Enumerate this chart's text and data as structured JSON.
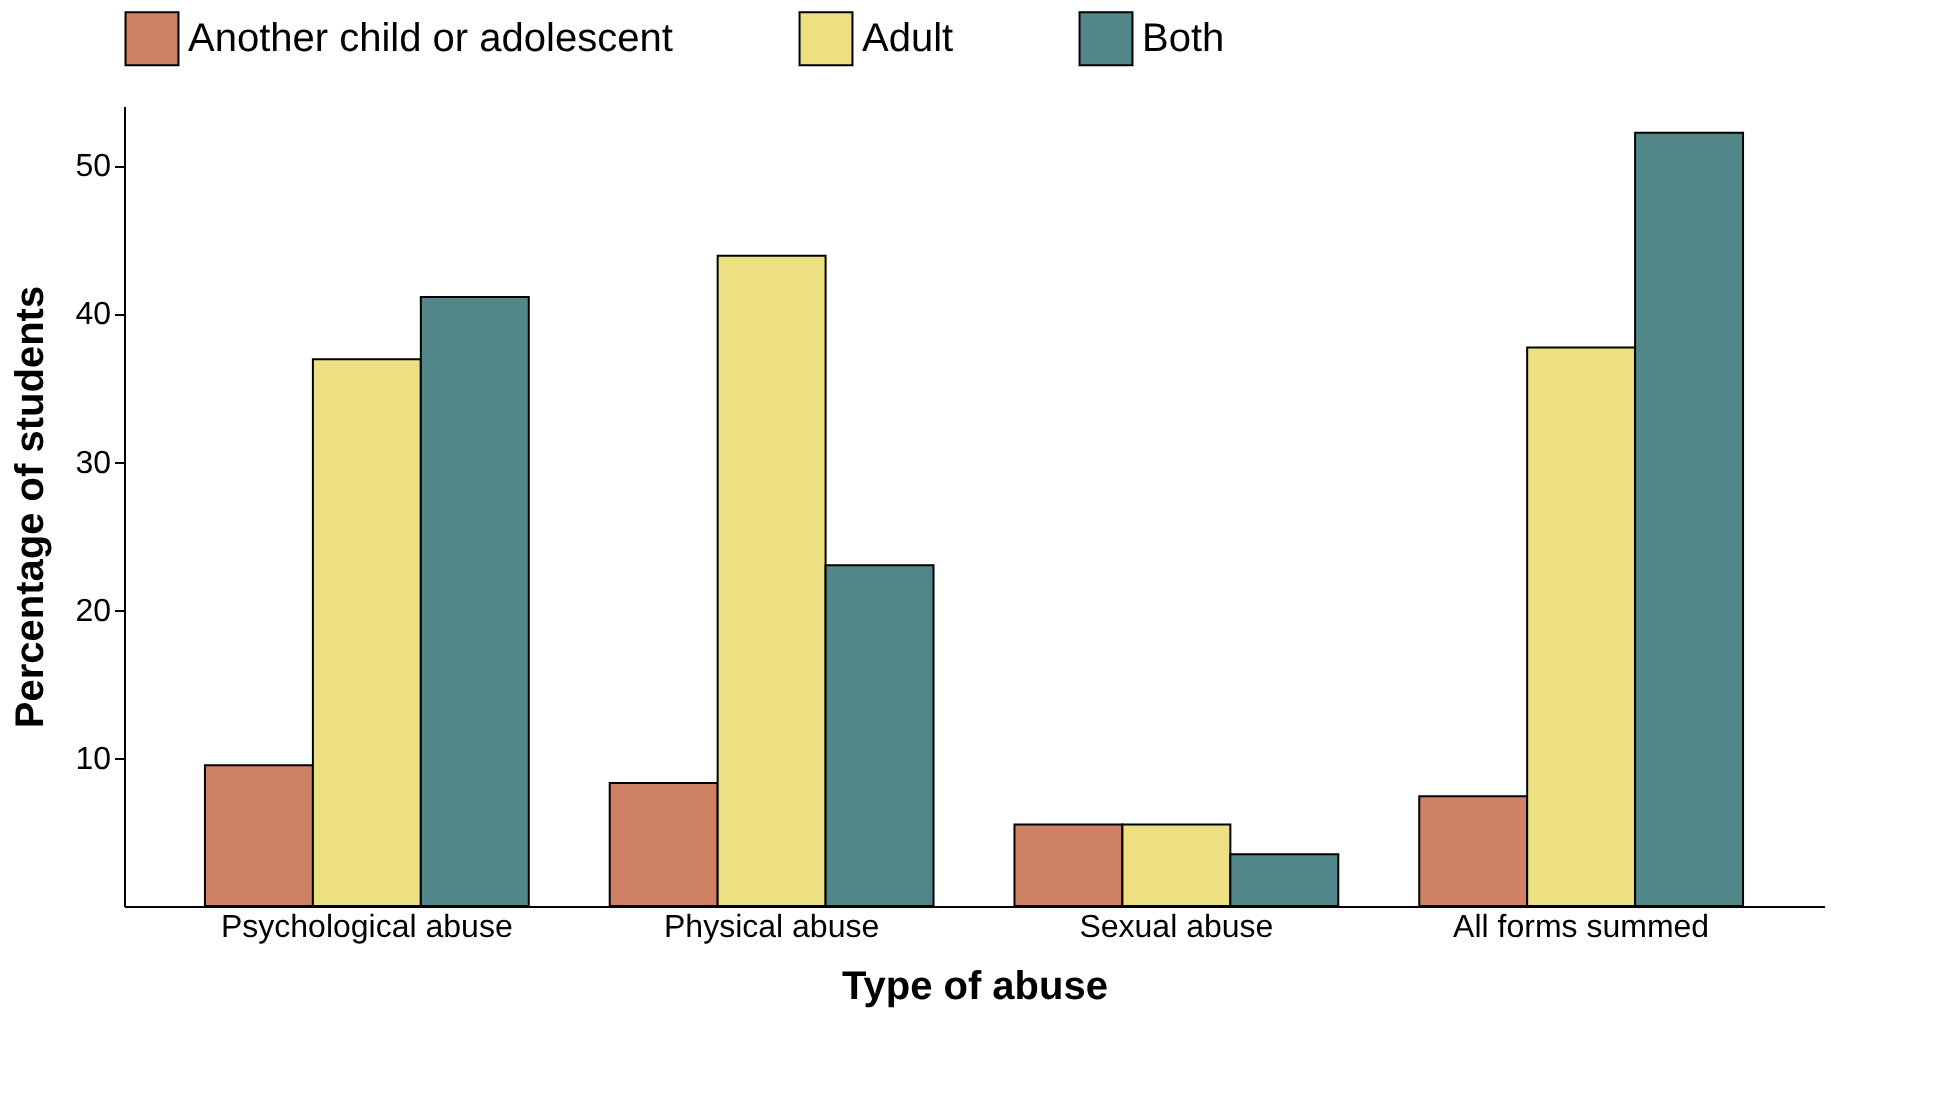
{
  "chart_data": {
    "type": "bar",
    "xlabel": "Type of abuse",
    "ylabel": "Percentage of students",
    "categories": [
      "Psychological abuse",
      "Physical abuse",
      "Sexual abuse",
      "All forms summed"
    ],
    "series": [
      {
        "name": "Another child or adolescent",
        "color": "#cf8163",
        "values": [
          9.5,
          8.3,
          5.5,
          7.4
        ]
      },
      {
        "name": "Adult",
        "color": "#ece083",
        "values": [
          36.9,
          43.9,
          5.5,
          37.7
        ]
      },
      {
        "name": "Both",
        "color": "#528789",
        "values": [
          41.1,
          23.0,
          3.5,
          52.2
        ]
      }
    ],
    "ylim": [
      0,
      54
    ],
    "yticks": [
      10,
      20,
      30,
      40,
      50
    ],
    "grid": false,
    "legend": "top"
  }
}
